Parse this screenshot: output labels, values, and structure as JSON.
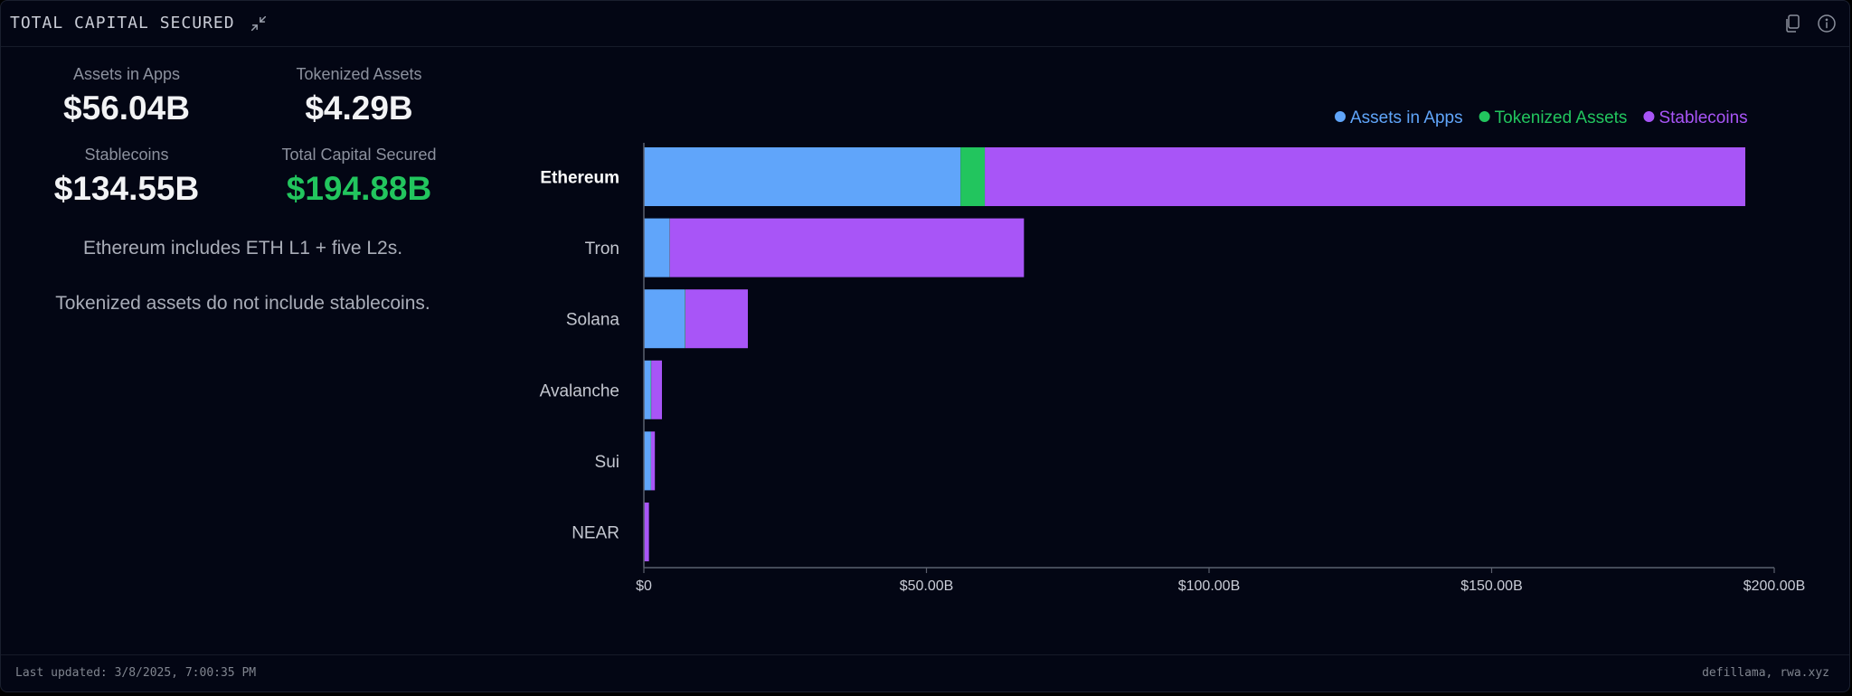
{
  "header": {
    "title": "TOTAL CAPITAL SECURED"
  },
  "icons": {
    "collapse": "collapse-icon",
    "copy": "copy-icon",
    "info": "info-icon"
  },
  "stats": {
    "assets_in_apps": {
      "label": "Assets in Apps",
      "value": "$56.04B"
    },
    "tokenized_assets": {
      "label": "Tokenized Assets",
      "value": "$4.29B"
    },
    "stablecoins": {
      "label": "Stablecoins",
      "value": "$134.55B"
    },
    "total": {
      "label": "Total Capital Secured",
      "value": "$194.88B"
    }
  },
  "notes": {
    "line1": "Ethereum includes ETH L1 + five L2s.",
    "line2": "Tokenized assets do not include stablecoins."
  },
  "colors": {
    "assets_in_apps": "#60a5fa",
    "tokenized_assets": "#22c55e",
    "stablecoins": "#a855f7",
    "axis": "#5b606e",
    "tick_text": "#c9ccd6",
    "category_text": "#c4c7d0",
    "category_bold": "#ffffff"
  },
  "chart_data": {
    "type": "bar",
    "orientation": "horizontal",
    "stacked": true,
    "title": "",
    "xlabel": "",
    "ylabel": "",
    "categories": [
      "Ethereum",
      "Tron",
      "Solana",
      "Avalanche",
      "Sui",
      "NEAR"
    ],
    "highlighted_category": "Ethereum",
    "series": [
      {
        "name": "Assets in Apps",
        "values": [
          56.04,
          4.5,
          7.2,
          1.2,
          1.2,
          0.1
        ]
      },
      {
        "name": "Tokenized Assets",
        "values": [
          4.29,
          0.05,
          0.1,
          0.1,
          0.05,
          0.0
        ]
      },
      {
        "name": "Stablecoins",
        "values": [
          134.55,
          62.7,
          11.1,
          1.9,
          0.7,
          0.8
        ]
      }
    ],
    "xlim": [
      0,
      200
    ],
    "xticks": [
      0,
      50,
      100,
      150,
      200
    ],
    "xtick_labels": [
      "$0",
      "$50.00B",
      "$100.00B",
      "$150.00B",
      "$200.00B"
    ],
    "legend": {
      "placement": "top-right"
    },
    "grid": false
  },
  "footer": {
    "last_updated": "Last updated: 3/8/2025, 7:00:35 PM",
    "sources": "defillama, rwa.xyz"
  }
}
